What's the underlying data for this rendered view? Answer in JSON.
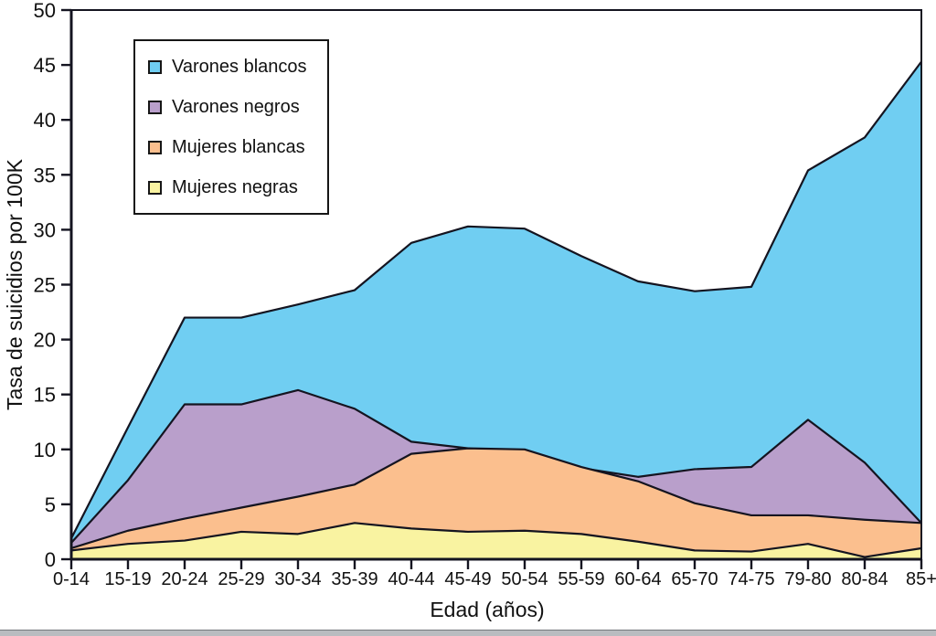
{
  "chart_data": {
    "type": "area",
    "layering": "overlaid-not-stacked",
    "title": "",
    "xlabel": "Edad (años)",
    "ylabel": "Tasa de suicidios por 100K",
    "ylim": [
      0,
      50
    ],
    "ytick_step": 5,
    "grid": false,
    "legend_position": "upper-left-inside",
    "line_color": "#141420",
    "frame_color": "#141420",
    "categories": [
      "0-14",
      "15-19",
      "20-24",
      "25-29",
      "30-34",
      "35-39",
      "40-44",
      "45-49",
      "50-54",
      "55-59",
      "60-64",
      "65-70",
      "74-75",
      "79-80",
      "80-84",
      "85+"
    ],
    "series": [
      {
        "name": "Varones blancos",
        "color": "#70CEF2",
        "values": [
          1.9,
          12.0,
          22.0,
          22.0,
          23.2,
          24.5,
          28.8,
          30.3,
          30.1,
          27.6,
          25.3,
          24.4,
          24.8,
          35.4,
          38.4,
          45.3
        ]
      },
      {
        "name": "Varones negros",
        "color": "#B99FCB",
        "values": [
          1.5,
          7.2,
          14.1,
          14.1,
          15.4,
          13.7,
          10.7,
          10.1,
          9.2,
          8.3,
          7.5,
          8.2,
          8.4,
          12.7,
          8.8,
          3.3
        ]
      },
      {
        "name": "Mujeres blancas",
        "color": "#FBBF8E",
        "values": [
          1.0,
          2.6,
          3.7,
          4.7,
          5.7,
          6.8,
          9.6,
          10.1,
          10.0,
          8.4,
          7.1,
          5.1,
          4.0,
          4.0,
          3.6,
          3.3
        ]
      },
      {
        "name": "Mujeres negras",
        "color": "#F9F3A1",
        "values": [
          0.8,
          1.4,
          1.7,
          2.5,
          2.3,
          3.3,
          2.8,
          2.5,
          2.6,
          2.3,
          1.6,
          0.8,
          0.7,
          1.4,
          0.2,
          1.0
        ]
      }
    ]
  }
}
